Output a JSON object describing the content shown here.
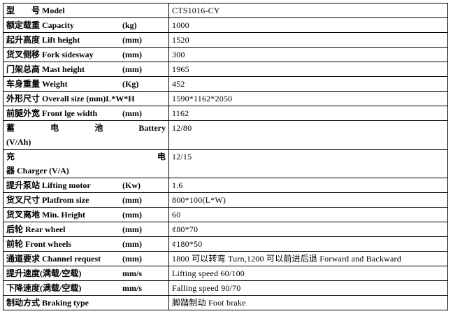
{
  "table": {
    "rows": [
      {
        "label": [
          "型　　号 Model"
        ],
        "value": "CTS1016-CY"
      },
      {
        "label": [
          "额定载重 Capacity"
        ],
        "unit": "(kg)",
        "value": "1000"
      },
      {
        "label": [
          "起升高度 Lift height"
        ],
        "unit": "(mm)",
        "value": "1520"
      },
      {
        "label": [
          "货叉侧移 Fork sidesway"
        ],
        "unit": "(mm)",
        "value": "300"
      },
      {
        "label": [
          "门架总高 Mast height"
        ],
        "unit": "(mm)",
        "value": "1965"
      },
      {
        "label": [
          "车身重量 Weight"
        ],
        "unit": "(Kg)",
        "value": "452"
      },
      {
        "label": [
          "外形尺寸 Overall size (mm)L*W*H"
        ],
        "value": "1590*1162*2050"
      },
      {
        "label": [
          "前腿外宽 Front lge width"
        ],
        "unit": "(mm)",
        "value": "1162"
      },
      {
        "label": [
          "蓄 电 池 Battery",
          "(V/Ah)"
        ],
        "value": "12/80"
      },
      {
        "label": [
          "充 电",
          "器 Charger (V/A)"
        ],
        "value": "12/15"
      },
      {
        "label": [
          "提升泵站 Lifting motor"
        ],
        "unit": "(Kw)",
        "value": "1.6"
      },
      {
        "label": [
          "货叉尺寸 Platfrom size"
        ],
        "unit": "(mm)",
        "value": "800*100(L*W)"
      },
      {
        "label": [
          "货叉离地 Min. Height"
        ],
        "unit": "(mm)",
        "value": "60"
      },
      {
        "label": [
          "后轮 Rear wheel"
        ],
        "unit": "(mm)",
        "value": "¢80*70"
      },
      {
        "label": [
          "前轮 Front wheels"
        ],
        "unit": "(mm)",
        "value": "¢180*50"
      },
      {
        "label": [
          "通道要求 Channel request"
        ],
        "unit": "(mm)",
        "value": "1800 可以转弯 Turn,1200 可以前进后退 Forward and Backward"
      },
      {
        "label": [
          "提升速度(满载/空载)"
        ],
        "unit": "mm/s",
        "value": "Lifting speed 60/100"
      },
      {
        "label": [
          "下降速度(满载/空载)"
        ],
        "unit": "mm/s",
        "value": "Falling speed 90/70"
      },
      {
        "label": [
          "制动方式 Braking type"
        ],
        "value": "脚踏制动 Foot brake"
      }
    ]
  }
}
